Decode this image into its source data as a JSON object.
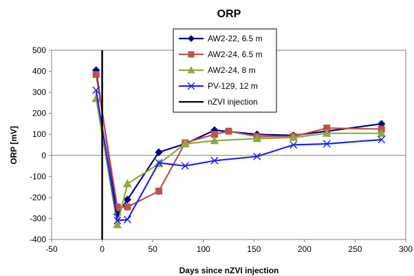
{
  "chart_data": {
    "type": "line",
    "title": "ORP",
    "xlabel": "Days since nZVI injection",
    "ylabel": "ORP [mV]",
    "xlim": [
      -50,
      300
    ],
    "ylim": [
      -400,
      500
    ],
    "xticks": [
      -50,
      0,
      50,
      100,
      150,
      200,
      250,
      300
    ],
    "yticks": [
      -400,
      -300,
      -200,
      -100,
      0,
      100,
      200,
      300,
      400,
      500
    ],
    "grid": false,
    "legend_position": "top-center",
    "series": [
      {
        "name": "AW2-22, 6.5 m",
        "color": "#000080",
        "marker": "diamond",
        "x": [
          -6,
          15,
          25,
          56,
          82,
          111,
          153,
          189,
          222,
          276
        ],
        "y": [
          405,
          -280,
          -210,
          15,
          55,
          120,
          100,
          95,
          115,
          150
        ]
      },
      {
        "name": "AW2-24, 6.5 m",
        "color": "#c0504d",
        "marker": "square",
        "x": [
          -6,
          15,
          25,
          56,
          82,
          111,
          125,
          153,
          189,
          222,
          276
        ],
        "y": [
          385,
          -245,
          -245,
          -170,
          60,
          100,
          115,
          90,
          90,
          130,
          125
        ]
      },
      {
        "name": "AW2-24, 8 m",
        "color": "#8faa3c",
        "marker": "triangle",
        "x": [
          -6,
          15,
          25,
          56,
          82,
          111,
          153,
          189,
          222,
          276
        ],
        "y": [
          270,
          -330,
          -135,
          -40,
          55,
          70,
          80,
          85,
          105,
          105
        ]
      },
      {
        "name": "PV-129, 12 m",
        "color": "#1e22ee",
        "marker": "x",
        "x": [
          -6,
          15,
          25,
          56,
          82,
          111,
          153,
          189,
          222,
          276
        ],
        "y": [
          310,
          -310,
          -305,
          -35,
          -50,
          -25,
          -5,
          50,
          55,
          75
        ]
      }
    ],
    "vertical_line": {
      "name": "nZVI injection",
      "x": 0,
      "color": "#000000"
    }
  }
}
